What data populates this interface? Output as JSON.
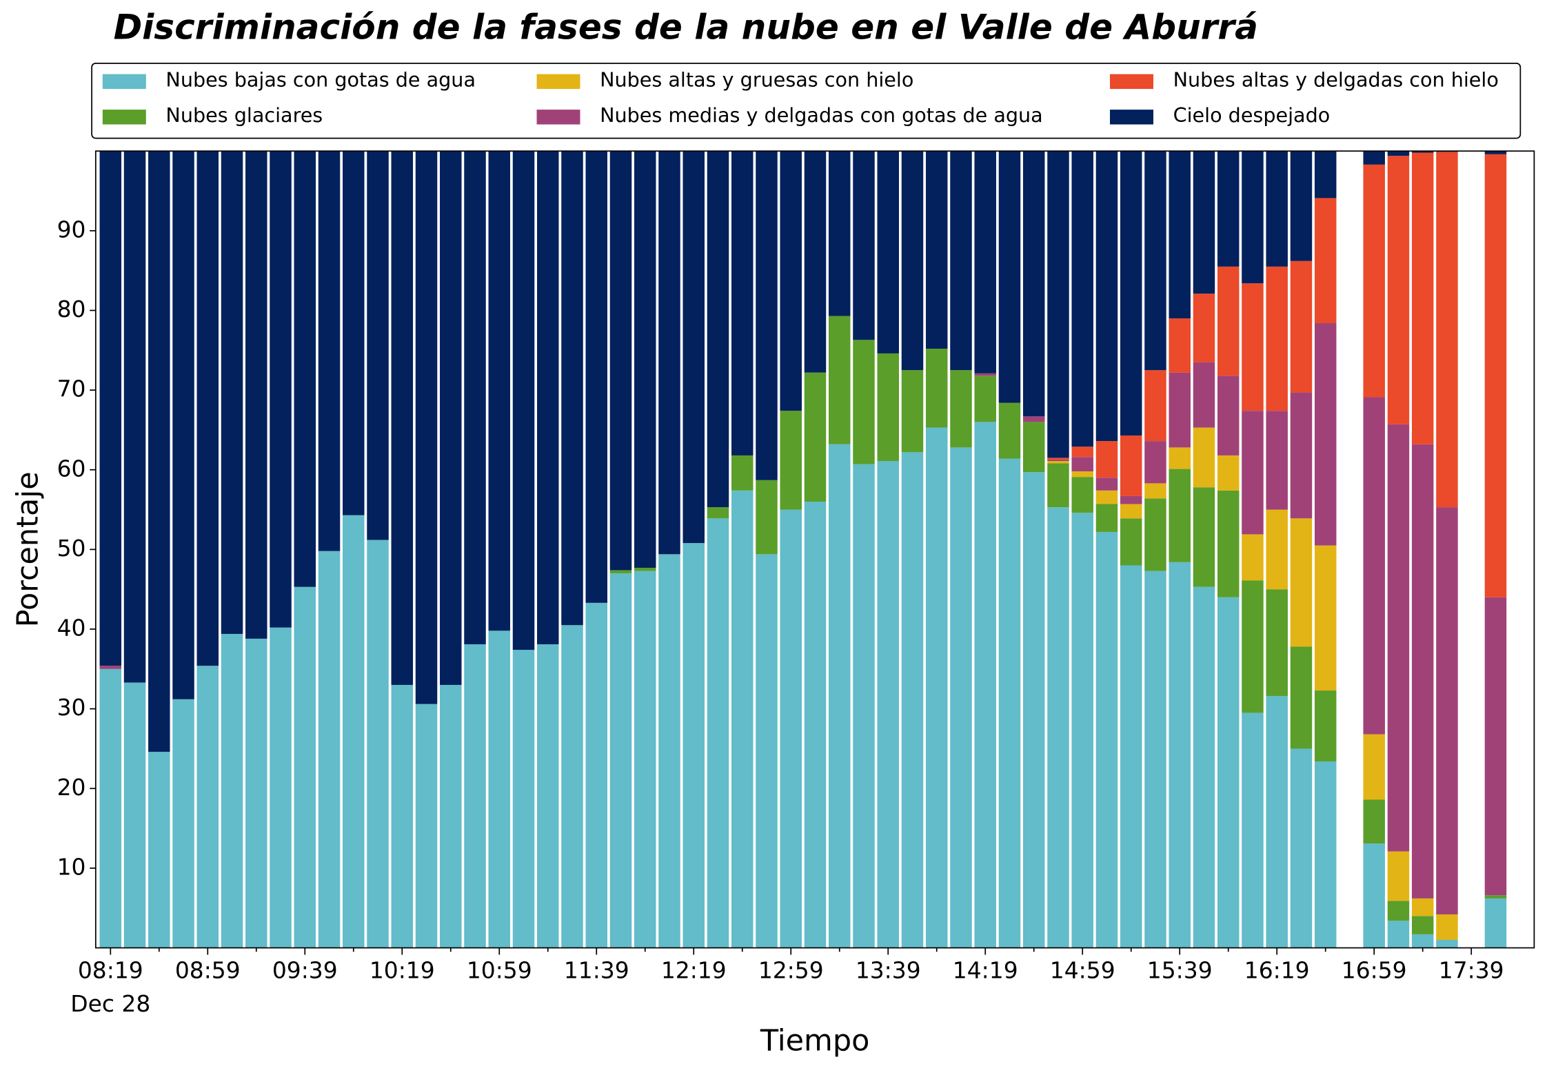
{
  "chart_data": {
    "type": "stacked_bar",
    "title": "Discriminación de la fases de la nube en el Valle de Aburrá",
    "xlabel": "Tiempo",
    "ylabel": "Porcentaje",
    "x_sublabel": "Dec 28",
    "categories": [
      "08:19",
      null,
      null,
      null,
      "08:59",
      null,
      null,
      null,
      "09:39",
      null,
      null,
      null,
      "10:19",
      null,
      null,
      null,
      "10:59",
      null,
      null,
      null,
      "11:39",
      null,
      null,
      null,
      "12:19",
      null,
      null,
      null,
      "12:59",
      null,
      null,
      null,
      "13:39",
      null,
      null,
      null,
      "14:19",
      null,
      null,
      null,
      "14:59",
      null,
      null,
      null,
      "15:39",
      null,
      null,
      null,
      "16:19",
      null,
      null,
      null,
      "16:59",
      null,
      null,
      null,
      "17:39",
      null
    ],
    "ylim": [
      0,
      100
    ],
    "yticks": [
      10,
      20,
      30,
      40,
      50,
      60,
      70,
      80,
      90
    ],
    "legend": "top",
    "series": [
      {
        "name": "Nubes bajas con gotas de agua",
        "color": "#62bcc9",
        "values": [
          35.0,
          33.3,
          24.6,
          31.2,
          35.4,
          39.4,
          38.8,
          40.2,
          45.3,
          49.8,
          54.3,
          51.2,
          33.0,
          30.6,
          33.0,
          38.1,
          39.8,
          37.4,
          38.1,
          40.5,
          43.3,
          47.0,
          47.3,
          49.4,
          50.8,
          53.9,
          57.4,
          49.4,
          55.0,
          56.0,
          63.2,
          60.7,
          61.1,
          62.2,
          65.3,
          62.8,
          66.0,
          61.4,
          59.7,
          55.3,
          54.6,
          52.2,
          48.0,
          47.3,
          48.4,
          45.3,
          44.0,
          29.5,
          31.6,
          25.0,
          23.4,
          null,
          13.1,
          3.4,
          1.7,
          1.0,
          null,
          6.2
        ]
      },
      {
        "name": "Nubes glaciares",
        "color": "#5b9e2a",
        "values": [
          0,
          0,
          0,
          0,
          0,
          0,
          0,
          0,
          0,
          0,
          0,
          0,
          0,
          0,
          0,
          0,
          0,
          0,
          0,
          0,
          0,
          0.4,
          0.4,
          0,
          0,
          1.4,
          4.4,
          9.3,
          12.4,
          16.2,
          16.1,
          15.6,
          13.5,
          10.3,
          9.9,
          9.7,
          5.8,
          7.0,
          6.3,
          5.5,
          4.5,
          3.5,
          5.9,
          9.1,
          11.7,
          12.5,
          13.4,
          16.6,
          13.4,
          12.8,
          8.9,
          null,
          5.5,
          2.5,
          2.3,
          0,
          null,
          0.4
        ]
      },
      {
        "name": "Nubes altas y gruesas con hielo",
        "color": "#e3b415",
        "values": [
          0,
          0,
          0,
          0,
          0,
          0,
          0,
          0,
          0,
          0,
          0,
          0,
          0,
          0,
          0,
          0,
          0,
          0,
          0,
          0,
          0,
          0,
          0,
          0,
          0,
          0,
          0,
          0,
          0,
          0,
          0,
          0,
          0,
          0,
          0,
          0,
          0,
          0,
          0,
          0.3,
          0.7,
          1.7,
          1.8,
          1.9,
          2.7,
          7.5,
          4.4,
          5.8,
          10.0,
          16.1,
          18.2,
          null,
          8.2,
          6.2,
          2.2,
          3.2,
          null,
          0
        ]
      },
      {
        "name": "Nubes medias y delgadas con gotas de agua",
        "color": "#a04278",
        "values": [
          0.4,
          0,
          0,
          0,
          0,
          0,
          0,
          0,
          0,
          0,
          0,
          0,
          0,
          0,
          0,
          0,
          0,
          0,
          0,
          0,
          0,
          0,
          0,
          0,
          0,
          0,
          0,
          0,
          0,
          0,
          0,
          0,
          0,
          0,
          0,
          0,
          0.3,
          0,
          0.7,
          0.2,
          1.8,
          1.6,
          1.0,
          5.3,
          9.4,
          8.2,
          10.0,
          15.5,
          12.4,
          15.8,
          27.9,
          null,
          42.3,
          53.6,
          57.0,
          51.1,
          null,
          37.4
        ]
      },
      {
        "name": "Nubes altas y delgadas con hielo",
        "color": "#eb4a2b",
        "values": [
          0,
          0,
          0,
          0,
          0,
          0,
          0,
          0,
          0,
          0,
          0,
          0,
          0,
          0,
          0,
          0,
          0,
          0,
          0,
          0,
          0,
          0,
          0,
          0,
          0,
          0,
          0,
          0,
          0,
          0,
          0,
          0,
          0,
          0,
          0,
          0,
          0,
          0,
          0,
          0.2,
          1.3,
          4.6,
          7.6,
          8.9,
          6.8,
          8.6,
          13.7,
          16.0,
          18.1,
          16.5,
          15.7,
          null,
          29.2,
          33.7,
          36.6,
          44.6,
          null,
          55.6
        ]
      },
      {
        "name": "Cielo despejado",
        "color": "#03215c",
        "values": [
          64.6,
          66.7,
          75.4,
          68.8,
          64.6,
          60.6,
          61.2,
          59.8,
          54.7,
          50.2,
          45.7,
          48.8,
          67.0,
          69.4,
          67.0,
          61.9,
          60.2,
          62.6,
          61.9,
          59.5,
          56.7,
          52.6,
          52.3,
          50.6,
          49.2,
          44.7,
          38.2,
          41.3,
          32.6,
          27.8,
          20.7,
          23.7,
          25.4,
          27.5,
          24.8,
          27.5,
          27.9,
          31.6,
          33.3,
          38.5,
          37.1,
          36.4,
          35.7,
          27.5,
          21.0,
          17.9,
          14.5,
          16.6,
          14.5,
          13.8,
          5.9,
          null,
          1.7,
          0.6,
          0.2,
          0.1,
          null,
          0.4
        ]
      }
    ]
  }
}
